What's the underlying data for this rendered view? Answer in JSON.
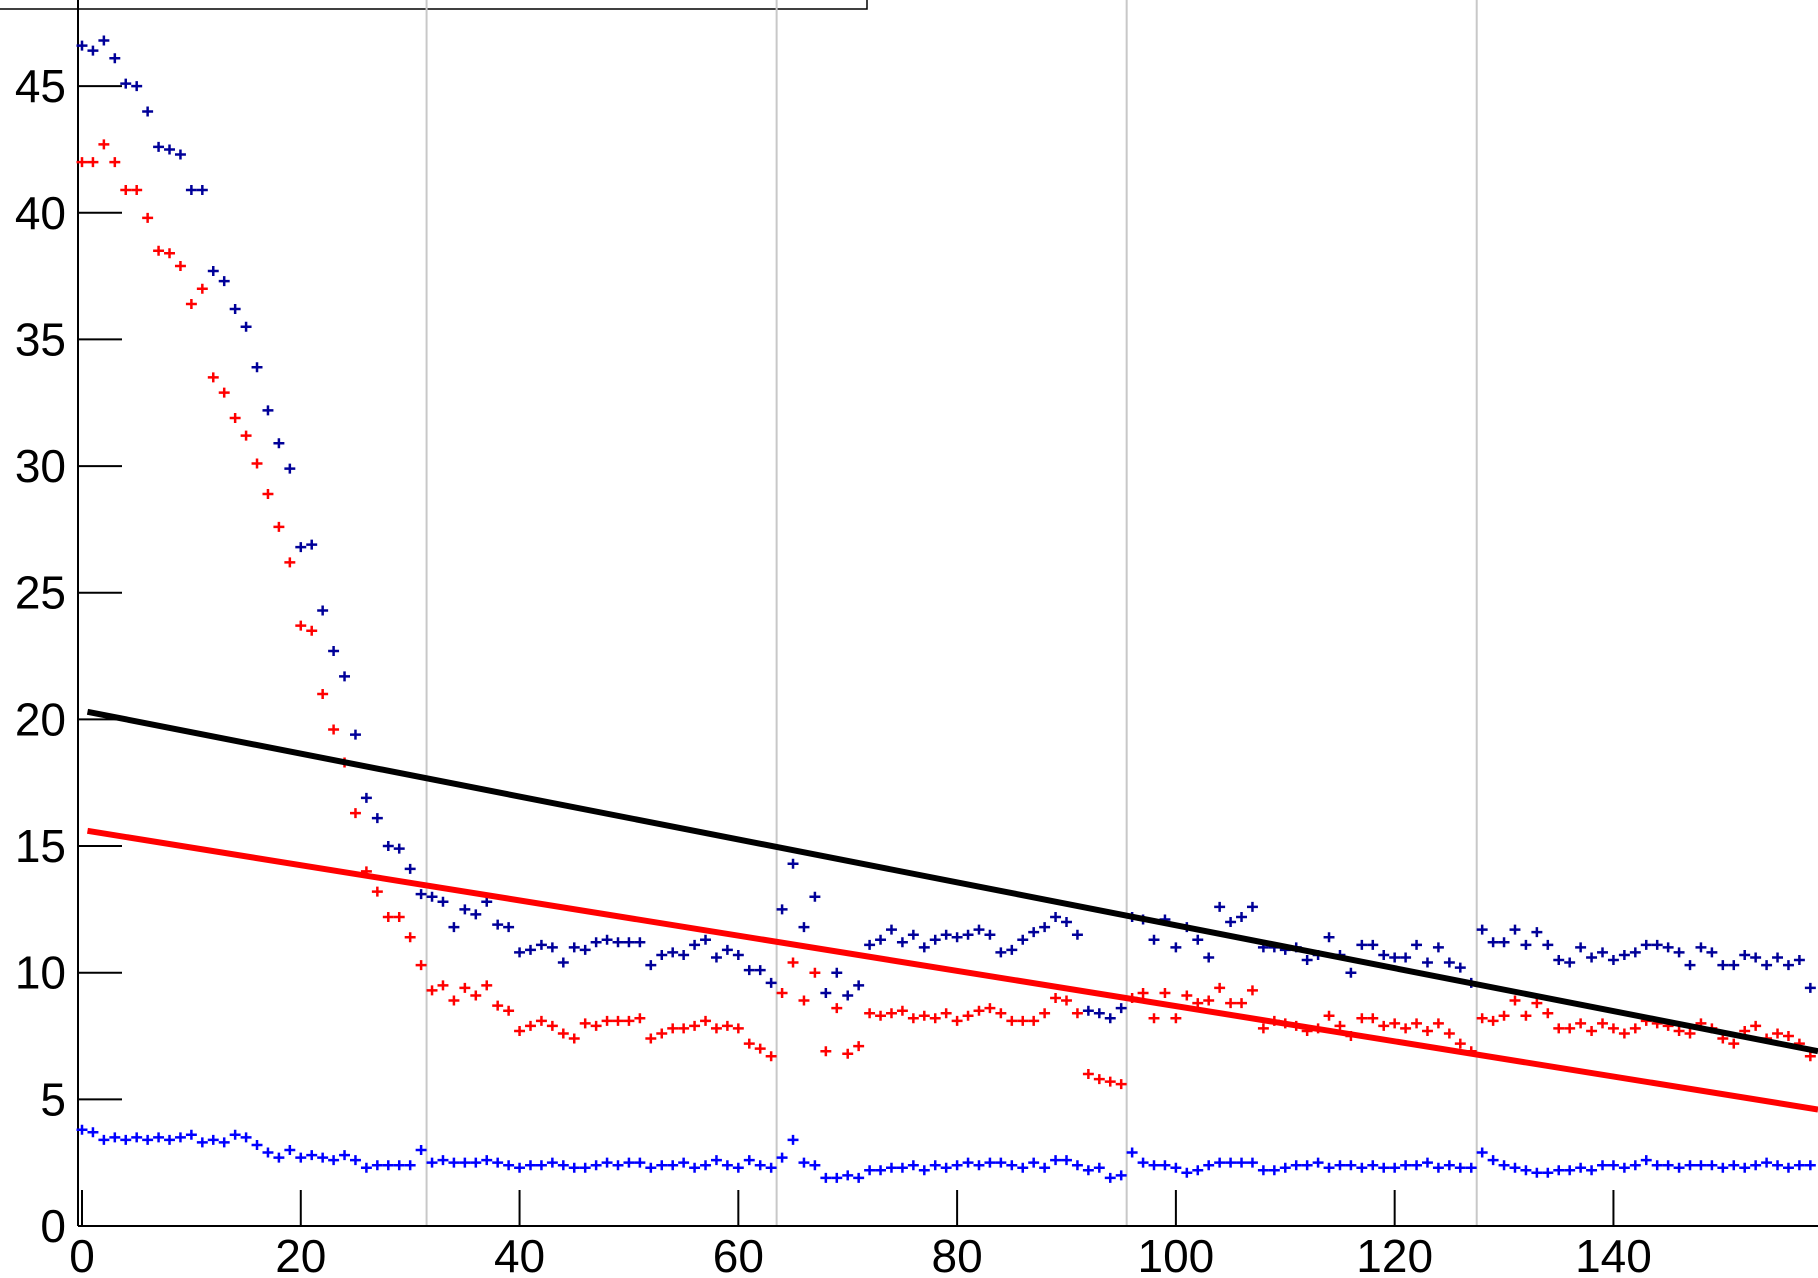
{
  "chart_data": {
    "type": "scatter",
    "xlim": [
      0,
      158.7
    ],
    "ylim": [
      0,
      48.4
    ],
    "xticks": [
      0,
      20,
      40,
      60,
      80,
      100,
      120,
      140
    ],
    "yticks": [
      0,
      5,
      10,
      15,
      20,
      25,
      30,
      35,
      40,
      45
    ],
    "vlines": [
      31.5,
      63.5,
      95.5,
      127.5
    ],
    "x": [
      0,
      1,
      2,
      3,
      4,
      5,
      6,
      7,
      8,
      9,
      10,
      11,
      12,
      13,
      14,
      15,
      16,
      17,
      18,
      19,
      20,
      21,
      22,
      23,
      24,
      25,
      26,
      27,
      28,
      29,
      30,
      31,
      32,
      33,
      34,
      35,
      36,
      37,
      38,
      39,
      40,
      41,
      42,
      43,
      44,
      45,
      46,
      47,
      48,
      49,
      50,
      51,
      52,
      53,
      54,
      55,
      56,
      57,
      58,
      59,
      60,
      61,
      62,
      63,
      64,
      65,
      66,
      67,
      68,
      69,
      70,
      71,
      72,
      73,
      74,
      75,
      76,
      77,
      78,
      79,
      80,
      81,
      82,
      83,
      84,
      85,
      86,
      87,
      88,
      89,
      90,
      91,
      92,
      93,
      94,
      95,
      96,
      97,
      98,
      99,
      100,
      101,
      102,
      103,
      104,
      105,
      106,
      107,
      108,
      109,
      110,
      111,
      112,
      113,
      114,
      115,
      116,
      117,
      118,
      119,
      120,
      121,
      122,
      123,
      124,
      125,
      126,
      127,
      128,
      129,
      130,
      131,
      132,
      133,
      134,
      135,
      136,
      137,
      138,
      139,
      140,
      141,
      142,
      143,
      144,
      145,
      146,
      147,
      148,
      149,
      150,
      151,
      152,
      153,
      154,
      155,
      156,
      157,
      158
    ],
    "series": [
      {
        "color": "#000099",
        "marker": "cross",
        "values": [
          46.6,
          46.4,
          46.8,
          46.1,
          45.1,
          45.0,
          44.0,
          42.6,
          42.5,
          42.3,
          40.9,
          40.9,
          37.7,
          37.3,
          36.2,
          35.5,
          33.9,
          32.2,
          30.9,
          29.9,
          26.8,
          26.9,
          24.3,
          22.7,
          21.7,
          19.4,
          16.9,
          16.1,
          15.0,
          14.9,
          14.1,
          13.1,
          13.0,
          12.8,
          11.8,
          12.5,
          12.3,
          12.8,
          11.9,
          11.8,
          10.8,
          10.9,
          11.1,
          11.0,
          10.4,
          11.0,
          10.9,
          11.2,
          11.3,
          11.2,
          11.2,
          11.2,
          10.3,
          10.7,
          10.8,
          10.7,
          11.1,
          11.3,
          10.6,
          10.9,
          10.7,
          10.1,
          10.1,
          9.6,
          12.5,
          14.3,
          11.8,
          13.0,
          9.2,
          10.0,
          9.1,
          9.5,
          11.1,
          11.3,
          11.7,
          11.2,
          11.5,
          11.0,
          11.3,
          11.5,
          11.4,
          11.5,
          11.7,
          11.5,
          10.8,
          10.9,
          11.3,
          11.6,
          11.8,
          12.2,
          12.0,
          11.5,
          8.5,
          8.4,
          8.2,
          8.6,
          12.2,
          12.1,
          11.3,
          12.1,
          11.0,
          11.8,
          11.3,
          10.6,
          12.6,
          12.0,
          12.2,
          12.6,
          11.0,
          11.0,
          10.9,
          11.0,
          10.5,
          10.7,
          11.4,
          10.7,
          10.0,
          11.1,
          11.1,
          10.7,
          10.6,
          10.6,
          11.1,
          10.4,
          11.0,
          10.4,
          10.2,
          9.6,
          11.7,
          11.2,
          11.2,
          11.7,
          11.1,
          11.6,
          11.1,
          10.5,
          10.4,
          11.0,
          10.6,
          10.8,
          10.5,
          10.7,
          10.8,
          11.1,
          11.1,
          11.0,
          10.8,
          10.3,
          11.0,
          10.8,
          10.3,
          10.3,
          10.7,
          10.6,
          10.3,
          10.6,
          10.3,
          10.5,
          9.4
        ]
      },
      {
        "color": "#ff0000",
        "marker": "cross",
        "values": [
          42.0,
          42.0,
          42.7,
          42.0,
          40.9,
          40.9,
          39.8,
          38.5,
          38.4,
          37.9,
          36.4,
          37.0,
          33.5,
          32.9,
          31.9,
          31.2,
          30.1,
          28.9,
          27.6,
          26.2,
          23.7,
          23.5,
          21.0,
          19.6,
          18.3,
          16.3,
          14.0,
          13.2,
          12.2,
          12.2,
          11.4,
          10.3,
          9.3,
          9.5,
          8.9,
          9.4,
          9.1,
          9.5,
          8.7,
          8.5,
          7.7,
          7.9,
          8.1,
          7.9,
          7.6,
          7.4,
          8.0,
          7.9,
          8.1,
          8.1,
          8.1,
          8.2,
          7.4,
          7.6,
          7.8,
          7.8,
          7.9,
          8.1,
          7.8,
          7.9,
          7.8,
          7.2,
          7.0,
          6.7,
          9.2,
          10.4,
          8.9,
          10.0,
          6.9,
          8.6,
          6.8,
          7.1,
          8.4,
          8.3,
          8.4,
          8.5,
          8.2,
          8.3,
          8.2,
          8.4,
          8.1,
          8.3,
          8.5,
          8.6,
          8.4,
          8.1,
          8.1,
          8.1,
          8.4,
          9.0,
          8.9,
          8.4,
          6.0,
          5.8,
          5.7,
          5.6,
          9.0,
          9.2,
          8.2,
          9.2,
          8.2,
          9.1,
          8.8,
          8.9,
          9.4,
          8.8,
          8.8,
          9.3,
          7.8,
          8.1,
          8.0,
          7.9,
          7.7,
          7.8,
          8.3,
          7.9,
          7.5,
          8.2,
          8.2,
          7.9,
          8.0,
          7.8,
          8.0,
          7.7,
          8.0,
          7.6,
          7.2,
          6.9,
          8.2,
          8.1,
          8.3,
          8.9,
          8.3,
          8.8,
          8.4,
          7.8,
          7.8,
          8.0,
          7.7,
          8.0,
          7.8,
          7.6,
          7.8,
          8.1,
          8.0,
          7.9,
          7.7,
          7.6,
          8.0,
          7.8,
          7.4,
          7.2,
          7.7,
          7.9,
          7.4,
          7.6,
          7.5,
          7.2,
          6.7
        ]
      },
      {
        "color": "#0000ff",
        "marker": "cross",
        "values": [
          3.8,
          3.7,
          3.4,
          3.5,
          3.4,
          3.5,
          3.4,
          3.5,
          3.4,
          3.5,
          3.6,
          3.3,
          3.4,
          3.3,
          3.6,
          3.5,
          3.2,
          2.9,
          2.7,
          3.0,
          2.7,
          2.8,
          2.7,
          2.6,
          2.8,
          2.6,
          2.3,
          2.4,
          2.4,
          2.4,
          2.4,
          3.0,
          2.5,
          2.6,
          2.5,
          2.5,
          2.5,
          2.6,
          2.5,
          2.4,
          2.3,
          2.4,
          2.4,
          2.5,
          2.4,
          2.3,
          2.3,
          2.4,
          2.5,
          2.4,
          2.5,
          2.5,
          2.3,
          2.4,
          2.4,
          2.5,
          2.3,
          2.4,
          2.6,
          2.4,
          2.3,
          2.6,
          2.4,
          2.3,
          2.7,
          3.4,
          2.5,
          2.4,
          1.9,
          1.9,
          2.0,
          1.9,
          2.2,
          2.2,
          2.3,
          2.3,
          2.4,
          2.2,
          2.4,
          2.3,
          2.4,
          2.5,
          2.4,
          2.5,
          2.5,
          2.4,
          2.3,
          2.5,
          2.3,
          2.6,
          2.6,
          2.4,
          2.2,
          2.3,
          1.9,
          2.0,
          2.9,
          2.5,
          2.4,
          2.4,
          2.3,
          2.1,
          2.2,
          2.4,
          2.5,
          2.5,
          2.5,
          2.5,
          2.2,
          2.2,
          2.3,
          2.4,
          2.4,
          2.5,
          2.3,
          2.4,
          2.4,
          2.3,
          2.4,
          2.3,
          2.3,
          2.4,
          2.4,
          2.5,
          2.3,
          2.4,
          2.3,
          2.3,
          2.9,
          2.6,
          2.4,
          2.3,
          2.2,
          2.1,
          2.1,
          2.2,
          2.2,
          2.3,
          2.2,
          2.4,
          2.4,
          2.3,
          2.4,
          2.6,
          2.4,
          2.4,
          2.3,
          2.4,
          2.4,
          2.4,
          2.3,
          2.4,
          2.3,
          2.4,
          2.5,
          2.4,
          2.3,
          2.4,
          2.4
        ]
      },
      {
        "color": "#000000",
        "marker": "line",
        "x": [
          0.5,
          158.7
        ],
        "values": [
          20.3,
          6.9
        ]
      },
      {
        "color": "#ff0000",
        "marker": "line",
        "x": [
          0.5,
          158.7
        ],
        "values": [
          15.6,
          4.6
        ]
      }
    ]
  }
}
